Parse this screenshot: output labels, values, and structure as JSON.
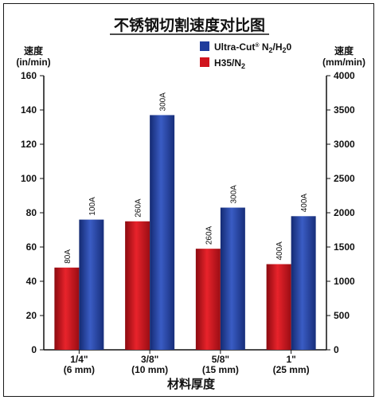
{
  "chart_data": {
    "type": "bar",
    "title": "不锈钢切割速度对比图",
    "xlabel": "材料厚度",
    "ylabel_left": [
      "速度",
      "(in/min)"
    ],
    "ylabel_right": [
      "速度",
      "(mm/min)"
    ],
    "ylim_left": [
      0,
      160
    ],
    "ylim_right": [
      0,
      4000
    ],
    "yticks_left": [
      "0",
      "20",
      "40",
      "60",
      "80",
      "100",
      "120",
      "140",
      "160"
    ],
    "yticks_right": [
      "0",
      "500",
      "1000",
      "1500",
      "2000",
      "2500",
      "3000",
      "3500",
      "4000"
    ],
    "categories": [
      [
        "1/4\"",
        "(6 mm)"
      ],
      [
        "3/8\"",
        "(10 mm)"
      ],
      [
        "5/8\"",
        "(15 mm)"
      ],
      [
        "1\"",
        "(25 mm)"
      ]
    ],
    "legend_position": "top-right",
    "grid": false,
    "series": [
      {
        "name": "H35/N2",
        "name_parts": [
          "H35/N",
          "2"
        ],
        "color": "#d0141e",
        "values": [
          48,
          75,
          59,
          50
        ],
        "labels": [
          "80A",
          "260A",
          "260A",
          "400A"
        ]
      },
      {
        "name": "Ultra-Cut® N2/H2O",
        "name_parts": [
          "Ultra-Cut",
          "®",
          " N",
          "2",
          "/H",
          "2",
          "0"
        ],
        "color": "#1f3c9c",
        "values": [
          76,
          137,
          83,
          78
        ],
        "labels": [
          "100A",
          "300A",
          "300A",
          "400A"
        ]
      }
    ]
  }
}
